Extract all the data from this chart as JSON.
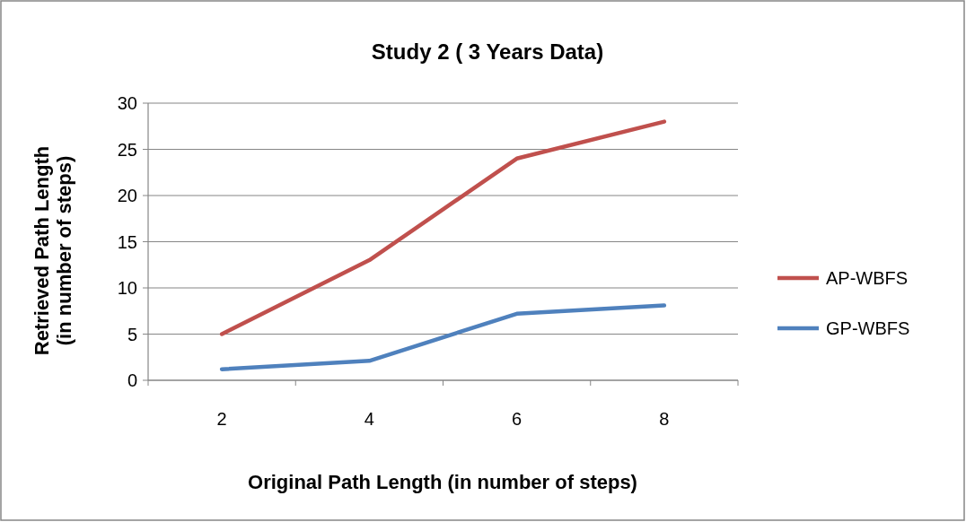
{
  "chart_data": {
    "type": "line",
    "title": "Study 2 ( 3 Years Data)",
    "xlabel": "Original Path Length (in number of steps)",
    "ylabel": "Retrieved Path Length (in number of steps)",
    "categories": [
      "2",
      "4",
      "6",
      "8"
    ],
    "series": [
      {
        "name": "AP-WBFS",
        "color": "#c0504d",
        "values": [
          5,
          13,
          24,
          28
        ]
      },
      {
        "name": "GP-WBFS",
        "color": "#4f81bd",
        "values": [
          1.2,
          2.1,
          7.2,
          8.1
        ]
      }
    ],
    "ylim": [
      0,
      30
    ],
    "yticks": [
      0,
      5,
      10,
      15,
      20,
      25,
      30
    ],
    "grid": "y",
    "legend": "right",
    "marker": "none",
    "line_style": "solid"
  }
}
